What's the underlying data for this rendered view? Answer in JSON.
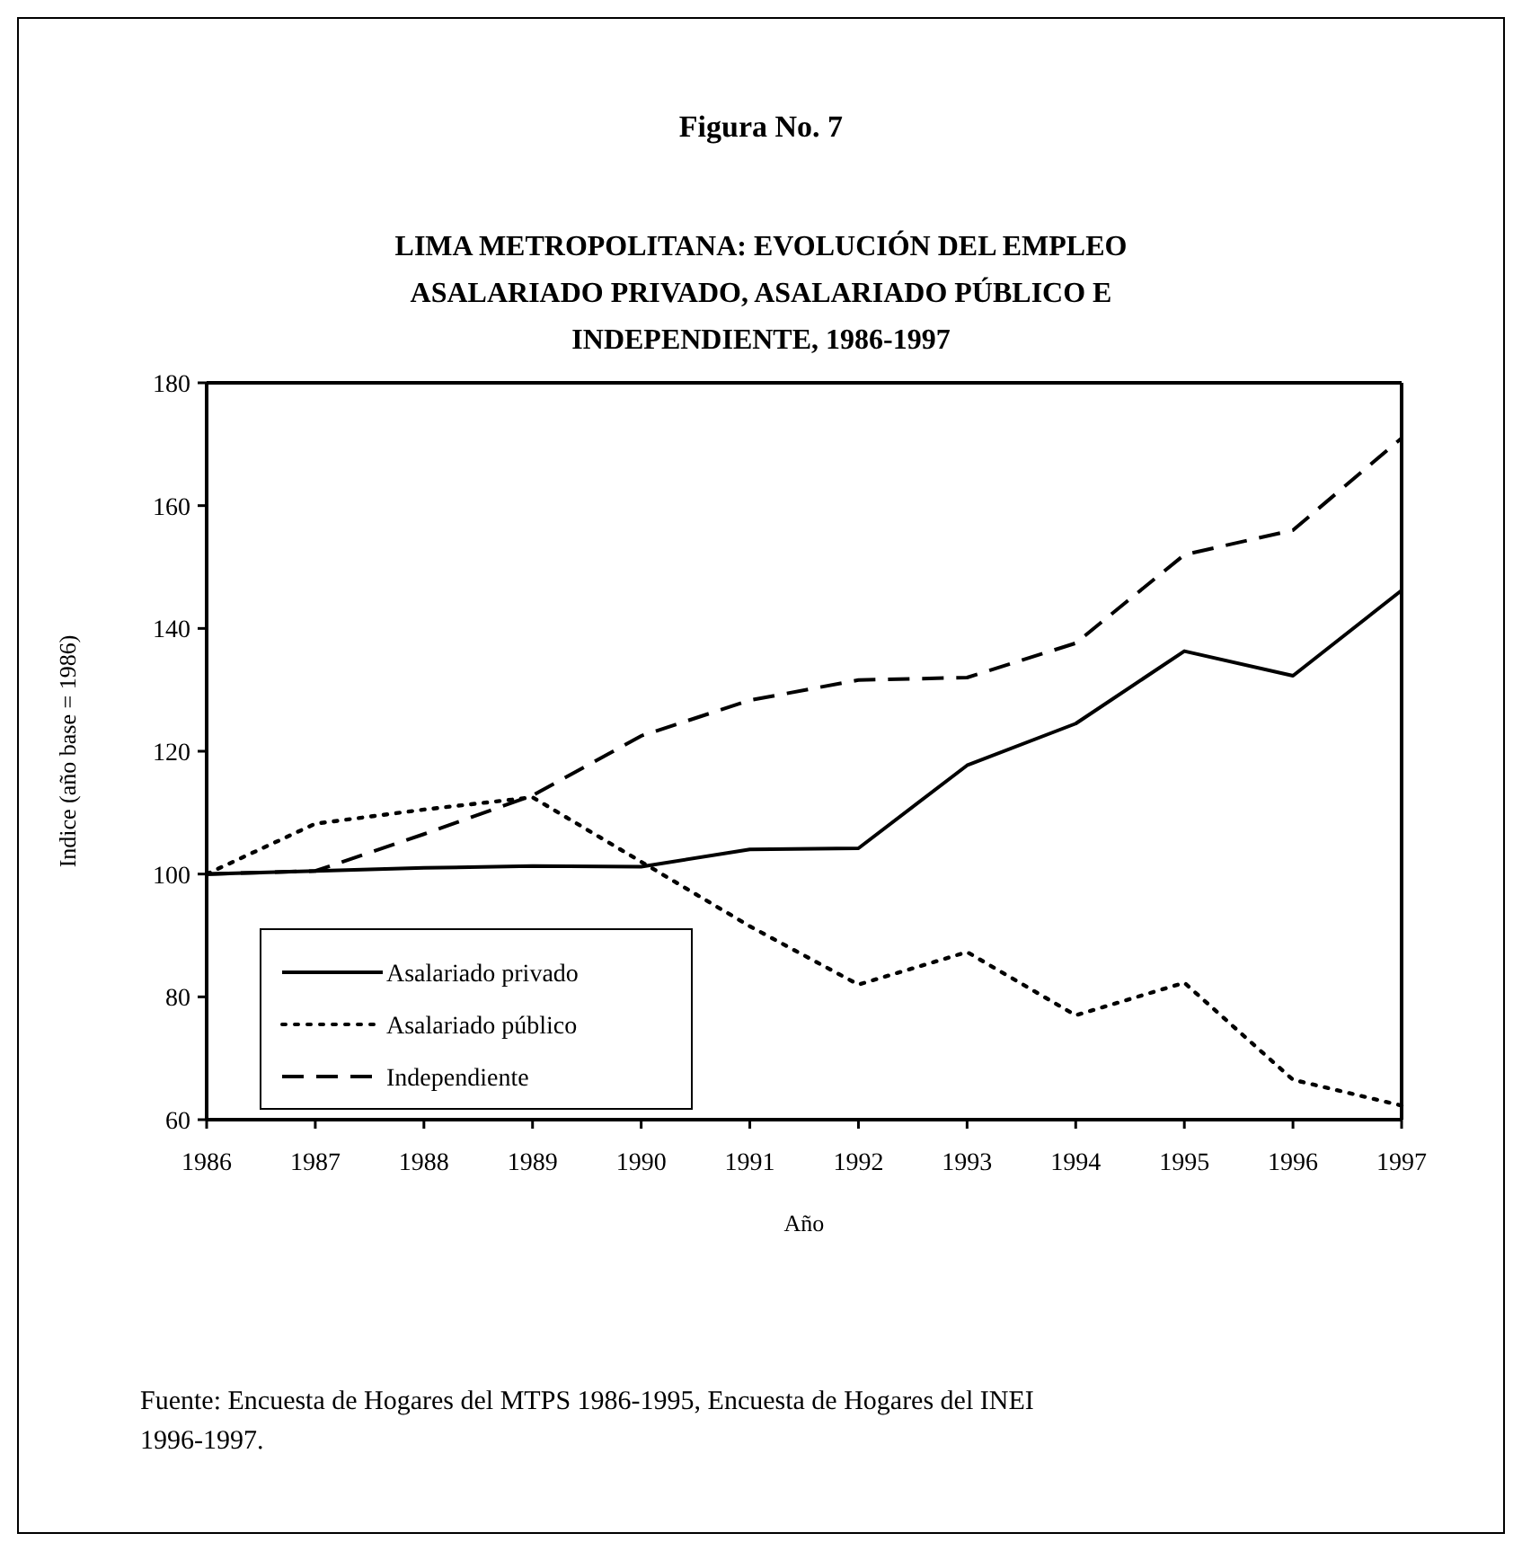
{
  "chart_data": {
    "type": "line",
    "title": "Figura No. 7",
    "subtitle": "LIMA METROPOLITANA: EVOLUCIÓN DEL EMPLEO ASALARIADO PRIVADO, ASALARIADO PÚBLICO E INDEPENDIENTE, 1986-1997",
    "xlabel": "Año",
    "ylabel": "Indice (año base = 1986)",
    "x": [
      1986,
      1987,
      1988,
      1989,
      1990,
      1991,
      1992,
      1993,
      1994,
      1995,
      1996,
      1997
    ],
    "series": [
      {
        "name": "Asalariado privado",
        "color": "#000000",
        "line_style": "solid",
        "values": [
          100,
          100.5,
          101,
          101.3,
          101.2,
          104,
          104.2,
          117.7,
          124.5,
          136.3,
          132.3,
          146.2
        ]
      },
      {
        "name": "Asalariado público",
        "color": "#000000",
        "line_style": "dotted",
        "values": [
          100,
          108.2,
          110.5,
          112.5,
          102,
          91.5,
          82,
          87.3,
          77,
          82.3,
          66.5,
          62.3
        ]
      },
      {
        "name": "Independiente",
        "color": "#000000",
        "line_style": "dashed",
        "values": [
          100,
          100.5,
          106.5,
          112.8,
          122.5,
          128.3,
          131.6,
          132,
          137.6,
          152,
          156,
          171
        ]
      }
    ],
    "xlim": [
      1986,
      1997
    ],
    "xticks": [
      1986,
      1987,
      1988,
      1989,
      1990,
      1991,
      1992,
      1993,
      1994,
      1995,
      1996,
      1997
    ],
    "ylim": [
      60,
      180
    ],
    "yticks": [
      60,
      80,
      100,
      120,
      140,
      160,
      180
    ],
    "grid": false,
    "legend": "bottom left",
    "marker": "none",
    "annotations": [
      "Fuente: Encuesta de Hogares del MTPS 1986-1995, Encuesta de Hogares del INEI 1996-1997."
    ]
  }
}
